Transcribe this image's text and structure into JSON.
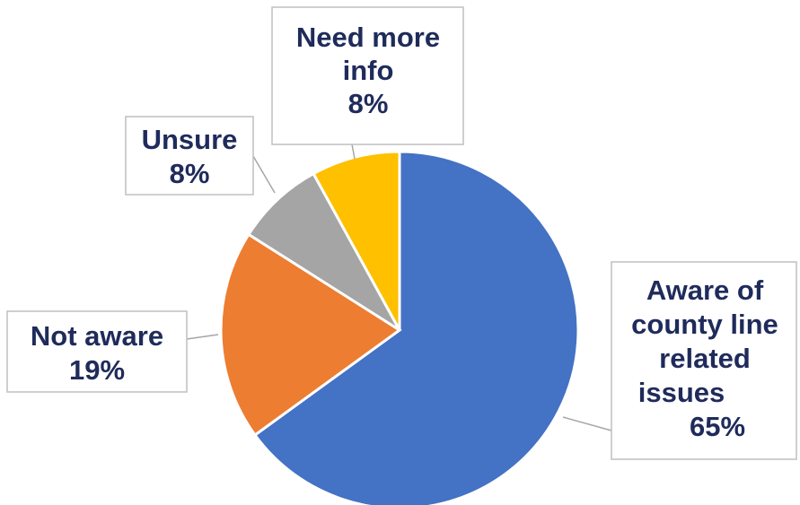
{
  "chart_data": {
    "type": "pie",
    "start": "12 o'clock, clockwise",
    "slices": [
      {
        "label_lines": [
          "Aware of",
          "county line",
          "related",
          "issues",
          "65%"
        ],
        "value": 65,
        "color": "#4472c4"
      },
      {
        "label_lines": [
          "Not aware",
          "19%"
        ],
        "value": 19,
        "color": "#ed7d31"
      },
      {
        "label_lines": [
          "Unsure",
          "8%"
        ],
        "value": 8,
        "color": "#a5a5a5"
      },
      {
        "label_lines": [
          "Need more",
          "info",
          "8%"
        ],
        "value": 8,
        "color": "#ffc000"
      }
    ]
  }
}
